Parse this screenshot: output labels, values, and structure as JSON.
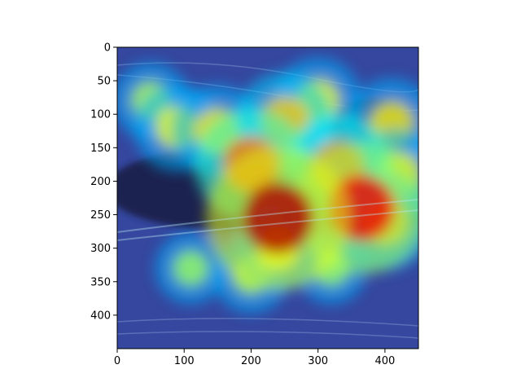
{
  "chart_data": {
    "type": "heatmap",
    "title": "",
    "xlabel": "",
    "ylabel": "",
    "xlim": [
      0,
      450
    ],
    "ylim": [
      450,
      0
    ],
    "xticks": [
      0,
      100,
      200,
      300,
      400
    ],
    "yticks": [
      0,
      50,
      100,
      150,
      200,
      250,
      300,
      350,
      400
    ],
    "xtick_labels": [
      "0",
      "100",
      "200",
      "300",
      "400"
    ],
    "ytick_labels": [
      "0",
      "50",
      "100",
      "150",
      "200",
      "250",
      "300",
      "350",
      "400"
    ],
    "colormap": "jet",
    "overlay": "attention heatmap blended over photo of a duck/loon swimming",
    "hotspots": [
      {
        "x": 240,
        "y": 255,
        "intensity": 1.0
      },
      {
        "x": 365,
        "y": 240,
        "intensity": 0.9
      },
      {
        "x": 200,
        "y": 175,
        "intensity": 0.7
      },
      {
        "x": 330,
        "y": 180,
        "intensity": 0.65
      },
      {
        "x": 250,
        "y": 110,
        "intensity": 0.55
      },
      {
        "x": 150,
        "y": 125,
        "intensity": 0.5
      },
      {
        "x": 410,
        "y": 115,
        "intensity": 0.5
      },
      {
        "x": 90,
        "y": 120,
        "intensity": 0.45
      },
      {
        "x": 300,
        "y": 80,
        "intensity": 0.45
      },
      {
        "x": 420,
        "y": 190,
        "intensity": 0.5
      },
      {
        "x": 200,
        "y": 340,
        "intensity": 0.35
      },
      {
        "x": 240,
        "y": 300,
        "intensity": 0.45
      },
      {
        "x": 110,
        "y": 330,
        "intensity": 0.3
      },
      {
        "x": 320,
        "y": 330,
        "intensity": 0.3
      },
      {
        "x": 50,
        "y": 80,
        "intensity": 0.35
      },
      {
        "x": 400,
        "y": 260,
        "intensity": 0.55
      }
    ],
    "colors": {
      "background_low": "#2a3fa0",
      "mid": "#3fd0d0",
      "high_yellow": "#e6d44a",
      "high_red": "#e03a2a",
      "bird_dark": "#1c2450"
    }
  }
}
